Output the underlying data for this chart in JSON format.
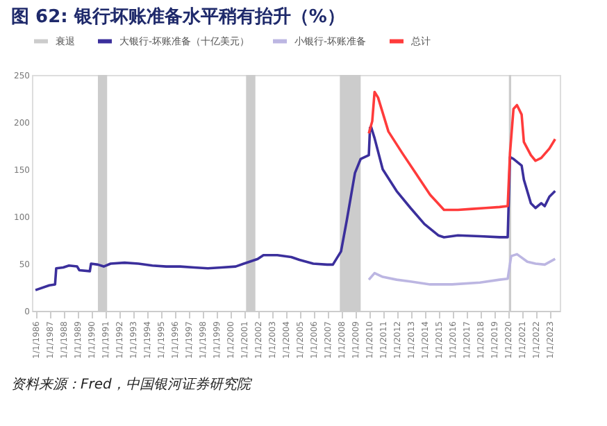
{
  "chart_data": {
    "type": "line",
    "title": "图 62: 银行坏账准备水平稍有抬升（%）",
    "annotations": [
      "资料来源：Fred，中国银河证券研究院"
    ],
    "ylim": [
      0,
      250
    ],
    "yticks": [
      0,
      50,
      100,
      150,
      200,
      250
    ],
    "xlim": [
      "1985-10",
      "2023-10"
    ],
    "xticks": [
      {
        "value": "1986-01",
        "label": "1/1/1986"
      },
      {
        "value": "1987-01",
        "label": "1/1/1987"
      },
      {
        "value": "1988-01",
        "label": "1/1/1988"
      },
      {
        "value": "1989-01",
        "label": "1/1/1989"
      },
      {
        "value": "1990-01",
        "label": "1/1/1990"
      },
      {
        "value": "1991-01",
        "label": "1/1/1991"
      },
      {
        "value": "1992-01",
        "label": "1/1/1992"
      },
      {
        "value": "1993-01",
        "label": "1/1/1993"
      },
      {
        "value": "1994-01",
        "label": "1/1/1994"
      },
      {
        "value": "1995-01",
        "label": "1/1/1995"
      },
      {
        "value": "1996-01",
        "label": "1/1/1996"
      },
      {
        "value": "1997-01",
        "label": "1/1/1997"
      },
      {
        "value": "1998-01",
        "label": "1/1/1998"
      },
      {
        "value": "1999-01",
        "label": "1/1/1999"
      },
      {
        "value": "2000-01",
        "label": "1/1/2000"
      },
      {
        "value": "2001-01",
        "label": "1/1/2001"
      },
      {
        "value": "2002-01",
        "label": "1/1/2002"
      },
      {
        "value": "2003-01",
        "label": "1/1/2003"
      },
      {
        "value": "2004-01",
        "label": "1/1/2004"
      },
      {
        "value": "2005-01",
        "label": "1/1/2005"
      },
      {
        "value": "2006-01",
        "label": "1/1/2006"
      },
      {
        "value": "2007-01",
        "label": "1/1/2007"
      },
      {
        "value": "2008-01",
        "label": "1/1/2008"
      },
      {
        "value": "2009-01",
        "label": "1/1/2009"
      },
      {
        "value": "2010-01",
        "label": "1/1/2010"
      },
      {
        "value": "2011-01",
        "label": "1/1/2011"
      },
      {
        "value": "2012-01",
        "label": "1/1/2012"
      },
      {
        "value": "2013-01",
        "label": "1/1/2013"
      },
      {
        "value": "2014-01",
        "label": "1/1/2014"
      },
      {
        "value": "2015-01",
        "label": "1/1/2015"
      },
      {
        "value": "2016-01",
        "label": "1/1/2016"
      },
      {
        "value": "2017-01",
        "label": "1/1/2017"
      },
      {
        "value": "2018-01",
        "label": "1/1/2018"
      },
      {
        "value": "2019-01",
        "label": "1/1/2019"
      },
      {
        "value": "2020-01",
        "label": "1/1/2020"
      },
      {
        "value": "2021-01",
        "label": "1/1/2021"
      },
      {
        "value": "2022-01",
        "label": "1/1/2022"
      },
      {
        "value": "2023-01",
        "label": "1/1/2023"
      }
    ],
    "grid": false,
    "legend": "top",
    "marker": "none",
    "line_style": "solid",
    "bands": [
      {
        "axis": "x",
        "from": "1990-07",
        "to": "1991-03",
        "label": "衰退",
        "color": "#cccccc"
      },
      {
        "axis": "x",
        "from": "2001-03",
        "to": "2001-11",
        "color": "#cccccc"
      },
      {
        "axis": "x",
        "from": "2007-12",
        "to": "2009-06",
        "color": "#cccccc"
      },
      {
        "axis": "x",
        "from": "2020-02",
        "to": "2020-04",
        "color": "#cccccc"
      }
    ],
    "series": [
      {
        "name": "大银行-坏账准备（十亿美元）",
        "color": "#3b2f9c",
        "x": [
          "1986-01",
          "1987-01",
          "1987-06",
          "1987-07",
          "1988-01",
          "1988-06",
          "1989-01",
          "1989-03",
          "1989-12",
          "1990-01",
          "1990-07",
          "1990-12",
          "1991-06",
          "1992-06",
          "1993-06",
          "1994-06",
          "1995-06",
          "1996-06",
          "1997-06",
          "1998-06",
          "1999-06",
          "2000-06",
          "2001-01",
          "2001-06",
          "2002-01",
          "2002-06",
          "2003-06",
          "2004-06",
          "2005-01",
          "2006-01",
          "2007-01",
          "2007-06",
          "2008-01",
          "2008-06",
          "2009-01",
          "2009-06",
          "2010-01",
          "2010-02",
          "2010-03",
          "2010-06",
          "2011-01",
          "2012-01",
          "2013-01",
          "2014-01",
          "2015-01",
          "2015-06",
          "2016-06",
          "2018-01",
          "2019-06",
          "2020-01",
          "2020-03",
          "2020-06",
          "2021-01",
          "2021-03",
          "2021-09",
          "2022-01",
          "2022-06",
          "2022-09",
          "2023-01",
          "2023-06"
        ],
        "values": [
          22,
          27,
          28,
          45,
          46,
          48,
          47,
          43,
          42,
          50,
          49,
          47,
          50,
          51,
          50,
          48,
          47,
          47,
          46,
          45,
          46,
          47,
          50,
          52,
          55,
          59,
          59,
          57,
          54,
          50,
          49,
          49,
          63,
          96,
          146,
          161,
          165,
          194,
          195,
          183,
          150,
          127,
          109,
          92,
          80,
          78,
          80,
          79,
          78,
          78,
          163,
          161,
          154,
          139,
          114,
          109,
          114,
          111,
          121,
          127
        ]
      },
      {
        "name": "小银行-坏账准备",
        "color": "#bcb6e2",
        "x": [
          "2010-01",
          "2010-06",
          "2011-01",
          "2012-01",
          "2013-01",
          "2014-06",
          "2016-01",
          "2018-01",
          "2019-06",
          "2020-01",
          "2020-04",
          "2020-09",
          "2021-06",
          "2022-01",
          "2022-09",
          "2023-06"
        ],
        "values": [
          33,
          40,
          36,
          33,
          31,
          28,
          28,
          30,
          33,
          34,
          58,
          60,
          52,
          50,
          49,
          55
        ]
      },
      {
        "name": "总计",
        "color": "#ff3b3b",
        "x": [
          "2010-01",
          "2010-04",
          "2010-06",
          "2010-09",
          "2011-06",
          "2012-06",
          "2013-06",
          "2014-06",
          "2015-06",
          "2016-06",
          "2017-06",
          "2018-06",
          "2019-06",
          "2020-01",
          "2020-03",
          "2020-06",
          "2020-09",
          "2021-01",
          "2021-03",
          "2021-09",
          "2022-01",
          "2022-06",
          "2023-01",
          "2023-06"
        ],
        "values": [
          188,
          201,
          232,
          226,
          190,
          167,
          145,
          123,
          107,
          107,
          108,
          109,
          110,
          111,
          167,
          214,
          218,
          208,
          179,
          165,
          159,
          162,
          172,
          182
        ]
      }
    ]
  }
}
